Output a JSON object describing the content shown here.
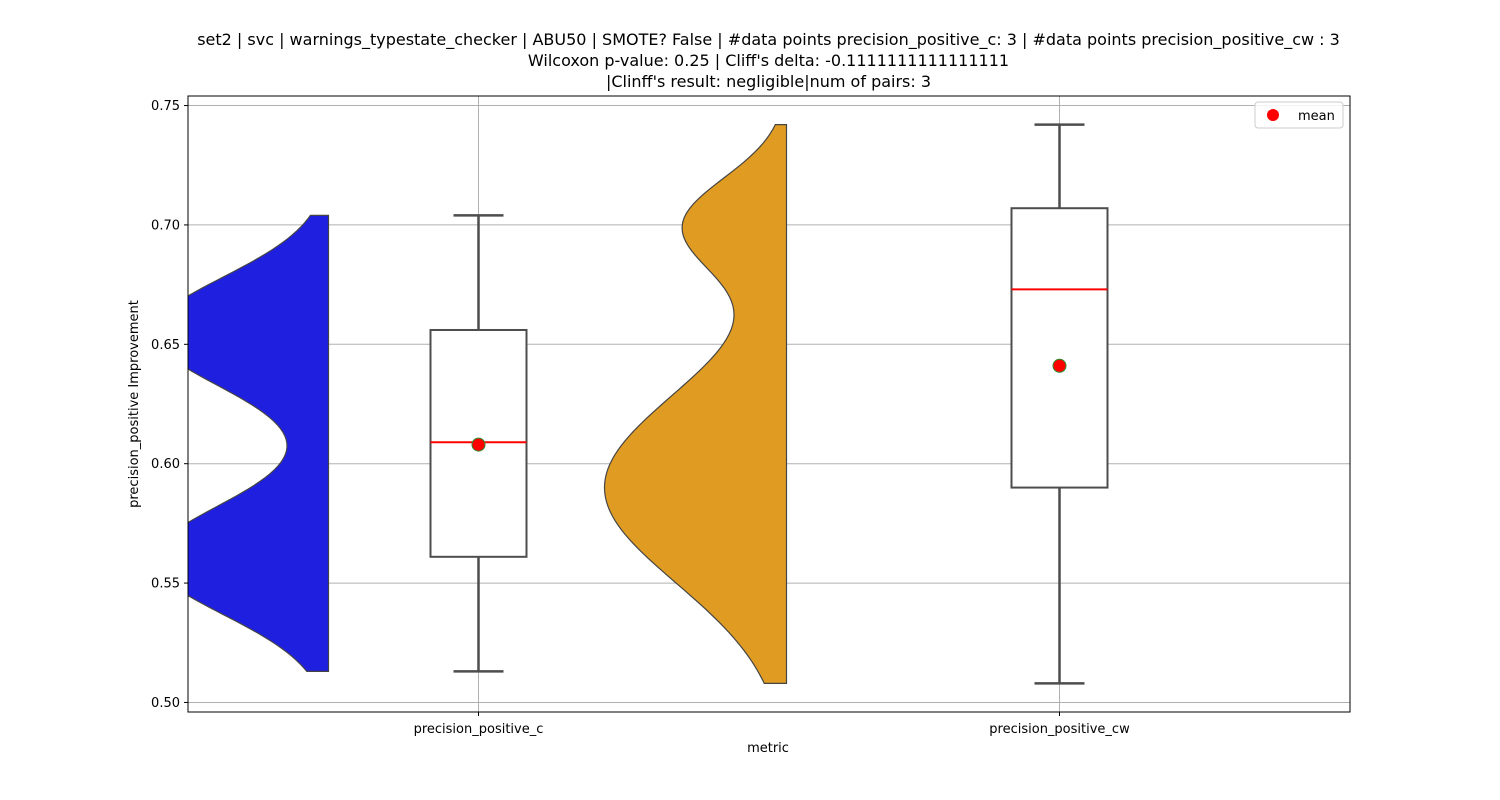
{
  "chart_data": {
    "type": "violin+box",
    "title_lines": [
      "set2 | svc | warnings_typestate_checker | ABU50 | SMOTE? False | #data points precision_positive_c: 3 | #data points precision_positive_cw : 3",
      "Wilcoxon p-value: 0.25 | Cliff's delta: -0.1111111111111111",
      "|Clinff's result: negligible|num of pairs: 3"
    ],
    "xlabel": "metric",
    "ylabel": "precision_positive Improvement",
    "categories": [
      "precision_positive_c",
      "precision_positive_cw"
    ],
    "ylim": [
      0.496,
      0.754
    ],
    "yticks": [
      0.5,
      0.55,
      0.6,
      0.65,
      0.7,
      0.75
    ],
    "ytick_labels": [
      "0.50",
      "0.55",
      "0.60",
      "0.65",
      "0.70",
      "0.75"
    ],
    "grid": true,
    "legend": {
      "position": "upper-right",
      "entries": [
        {
          "label": "mean",
          "marker": "circle",
          "color": "#ff0000"
        }
      ]
    },
    "series": [
      {
        "category": "precision_positive_c",
        "violin_color": "#1f1fe0",
        "violin_range": [
          0.513,
          0.704
        ],
        "box": {
          "whisker_low": 0.513,
          "q1": 0.561,
          "median": 0.609,
          "q3": 0.656,
          "whisker_high": 0.704
        },
        "mean": 0.608
      },
      {
        "category": "precision_positive_cw",
        "violin_color": "#e09c22",
        "violin_range": [
          0.508,
          0.742
        ],
        "box": {
          "whisker_low": 0.508,
          "q1": 0.59,
          "median": 0.673,
          "q3": 0.707,
          "whisker_high": 0.742
        },
        "mean": 0.641
      }
    ]
  }
}
